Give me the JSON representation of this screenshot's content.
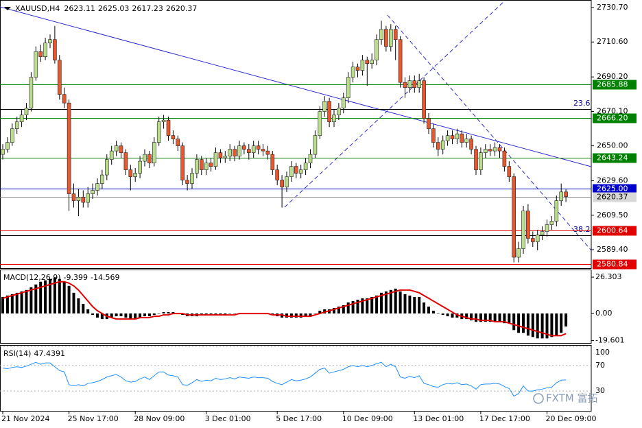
{
  "chart_data": {
    "type": "candlestick",
    "symbol": "XAUUSD,H4",
    "up_color": "#b9dd8a",
    "down_color": "#e8582e",
    "categories": [
      "21 Nov 2024",
      null,
      null,
      null,
      null,
      null,
      null,
      null,
      null,
      null,
      null,
      null,
      null,
      null,
      "25 Nov 17:00",
      null,
      null,
      null,
      null,
      null,
      null,
      null,
      null,
      null,
      null,
      null,
      null,
      null,
      "28 Nov 09:00",
      null,
      null,
      null,
      null,
      null,
      null,
      null,
      null,
      null,
      null,
      null,
      null,
      null,
      null,
      "3 Dec 01:00",
      null,
      null,
      null,
      null,
      null,
      null,
      null,
      null,
      null,
      null,
      null,
      null,
      null,
      null,
      "5 Dec 17:00",
      null,
      null,
      null,
      null,
      null,
      null,
      null,
      null,
      null,
      null,
      null,
      null,
      null,
      "10 Dec 09:00",
      null,
      null,
      null,
      null,
      null,
      null,
      null,
      null,
      null,
      null,
      null,
      null,
      null,
      null,
      "13 Dec 01:00",
      null,
      null,
      null,
      null,
      null,
      null,
      null,
      null,
      null,
      null,
      null,
      null,
      null,
      "17 Dec 17:00",
      null,
      null,
      null,
      null,
      null,
      null,
      null,
      null,
      null,
      null,
      null,
      null,
      null,
      "20 Dec 09:00",
      null,
      null,
      null,
      null
    ],
    "ohlc": [
      [
        2645,
        2651,
        2642,
        2648
      ],
      [
        2648,
        2655,
        2646,
        2652
      ],
      [
        2652,
        2663,
        2650,
        2660
      ],
      [
        2660,
        2667,
        2657,
        2664
      ],
      [
        2664,
        2671,
        2661,
        2668
      ],
      [
        2668,
        2675,
        2665,
        2672
      ],
      [
        2672,
        2693,
        2670,
        2690
      ],
      [
        2690,
        2708,
        2688,
        2705
      ],
      [
        2705,
        2709,
        2699,
        2702
      ],
      [
        2702,
        2713,
        2700,
        2710
      ],
      [
        2710,
        2715,
        2707,
        2712
      ],
      [
        2712,
        2720,
        2698,
        2700
      ],
      [
        2700,
        2703,
        2677,
        2680
      ],
      [
        2680,
        2684,
        2672,
        2675
      ],
      [
        2675,
        2677,
        2612,
        2622
      ],
      [
        2622,
        2628,
        2614,
        2618
      ],
      [
        2618,
        2625,
        2609,
        2620
      ],
      [
        2620,
        2624,
        2614,
        2617
      ],
      [
        2617,
        2626,
        2614,
        2622
      ],
      [
        2622,
        2628,
        2619,
        2624
      ],
      [
        2624,
        2631,
        2621,
        2628
      ],
      [
        2628,
        2636,
        2625,
        2633
      ],
      [
        2633,
        2645,
        2630,
        2642
      ],
      [
        2642,
        2650,
        2639,
        2647
      ],
      [
        2647,
        2653,
        2644,
        2650
      ],
      [
        2650,
        2652,
        2643,
        2646
      ],
      [
        2646,
        2648,
        2633,
        2636
      ],
      [
        2636,
        2639,
        2624,
        2632
      ],
      [
        2632,
        2637,
        2629,
        2634
      ],
      [
        2634,
        2644,
        2631,
        2641
      ],
      [
        2641,
        2648,
        2638,
        2645
      ],
      [
        2645,
        2647,
        2637,
        2640
      ],
      [
        2640,
        2655,
        2638,
        2652
      ],
      [
        2652,
        2667,
        2650,
        2664
      ],
      [
        2664,
        2668,
        2660,
        2665
      ],
      [
        2665,
        2667,
        2653,
        2656
      ],
      [
        2656,
        2659,
        2651,
        2654
      ],
      [
        2654,
        2656,
        2647,
        2650
      ],
      [
        2650,
        2652,
        2627,
        2630
      ],
      [
        2630,
        2633,
        2624,
        2628
      ],
      [
        2628,
        2637,
        2625,
        2634
      ],
      [
        2634,
        2645,
        2631,
        2642
      ],
      [
        2642,
        2644,
        2633,
        2636
      ],
      [
        2636,
        2643,
        2633,
        2640
      ],
      [
        2640,
        2643,
        2635,
        2638
      ],
      [
        2638,
        2649,
        2636,
        2646
      ],
      [
        2646,
        2648,
        2640,
        2643
      ],
      [
        2643,
        2647,
        2640,
        2644
      ],
      [
        2644,
        2651,
        2641,
        2648
      ],
      [
        2648,
        2650,
        2641,
        2644
      ],
      [
        2644,
        2653,
        2642,
        2650
      ],
      [
        2650,
        2652,
        2645,
        2648
      ],
      [
        2648,
        2651,
        2642,
        2646
      ],
      [
        2646,
        2653,
        2643,
        2650
      ],
      [
        2650,
        2653,
        2645,
        2648
      ],
      [
        2648,
        2651,
        2644,
        2647
      ],
      [
        2647,
        2650,
        2642,
        2645
      ],
      [
        2645,
        2647,
        2633,
        2636
      ],
      [
        2636,
        2639,
        2627,
        2630
      ],
      [
        2630,
        2633,
        2614,
        2626
      ],
      [
        2626,
        2635,
        2623,
        2632
      ],
      [
        2632,
        2641,
        2629,
        2638
      ],
      [
        2638,
        2640,
        2631,
        2634
      ],
      [
        2634,
        2639,
        2631,
        2636
      ],
      [
        2636,
        2643,
        2633,
        2640
      ],
      [
        2640,
        2648,
        2637,
        2645
      ],
      [
        2645,
        2659,
        2643,
        2656
      ],
      [
        2656,
        2673,
        2654,
        2670
      ],
      [
        2670,
        2679,
        2667,
        2676
      ],
      [
        2676,
        2678,
        2661,
        2664
      ],
      [
        2664,
        2671,
        2661,
        2668
      ],
      [
        2668,
        2675,
        2665,
        2672
      ],
      [
        2672,
        2681,
        2669,
        2678
      ],
      [
        2678,
        2693,
        2675,
        2690
      ],
      [
        2690,
        2699,
        2687,
        2696
      ],
      [
        2696,
        2698,
        2690,
        2694
      ],
      [
        2694,
        2703,
        2691,
        2700
      ],
      [
        2700,
        2702,
        2685,
        2698
      ],
      [
        2698,
        2704,
        2695,
        2700
      ],
      [
        2700,
        2715,
        2697,
        2712
      ],
      [
        2712,
        2723,
        2709,
        2718
      ],
      [
        2718,
        2720,
        2705,
        2708
      ],
      [
        2708,
        2721,
        2705,
        2718
      ],
      [
        2718,
        2720,
        2700,
        2712
      ],
      [
        2712,
        2714,
        2684,
        2687
      ],
      [
        2687,
        2690,
        2678,
        2684
      ],
      [
        2684,
        2691,
        2681,
        2688
      ],
      [
        2688,
        2691,
        2681,
        2684
      ],
      [
        2684,
        2692,
        2681,
        2688
      ],
      [
        2688,
        2690,
        2663,
        2666
      ],
      [
        2666,
        2669,
        2657,
        2660
      ],
      [
        2660,
        2663,
        2649,
        2652
      ],
      [
        2652,
        2655,
        2644,
        2648
      ],
      [
        2648,
        2656,
        2645,
        2653
      ],
      [
        2653,
        2659,
        2650,
        2656
      ],
      [
        2656,
        2659,
        2651,
        2654
      ],
      [
        2654,
        2660,
        2651,
        2657
      ],
      [
        2657,
        2659,
        2649,
        2652
      ],
      [
        2652,
        2657,
        2649,
        2654
      ],
      [
        2654,
        2656,
        2645,
        2648
      ],
      [
        2648,
        2650,
        2633,
        2636
      ],
      [
        2636,
        2649,
        2633,
        2646
      ],
      [
        2646,
        2651,
        2643,
        2648
      ],
      [
        2648,
        2651,
        2644,
        2647
      ],
      [
        2647,
        2652,
        2644,
        2649
      ],
      [
        2649,
        2651,
        2643,
        2647
      ],
      [
        2647,
        2649,
        2635,
        2638
      ],
      [
        2638,
        2641,
        2629,
        2632
      ],
      [
        2632,
        2634,
        2582,
        2585
      ],
      [
        2585,
        2594,
        2582,
        2590
      ],
      [
        2590,
        2615,
        2587,
        2612
      ],
      [
        2612,
        2616,
        2593,
        2596
      ],
      [
        2596,
        2600,
        2591,
        2594
      ],
      [
        2594,
        2601,
        2589,
        2598
      ],
      [
        2598,
        2603,
        2595,
        2600
      ],
      [
        2600,
        2607,
        2597,
        2604
      ],
      [
        2604,
        2609,
        2601,
        2606
      ],
      [
        2606,
        2621,
        2603,
        2618
      ],
      [
        2618,
        2628,
        2615,
        2623.11
      ],
      [
        2623.11,
        2625.03,
        2617.23,
        2620.37
      ]
    ],
    "ylim": [
      2578.2,
      2735.1
    ],
    "yticks": [
      {
        "value": 2730.7,
        "label": "2730.70"
      },
      {
        "value": 2710.6,
        "label": "2710.60"
      },
      {
        "value": 2690.2,
        "label": "2690.20"
      },
      {
        "value": 2670.1,
        "label": "2670.10"
      },
      {
        "value": 2650,
        "label": "2650.00"
      },
      {
        "value": 2629.6,
        "label": "2629.60"
      },
      {
        "value": 2609.5,
        "label": "2609.50"
      },
      {
        "value": 2589.4,
        "label": "2589.40"
      }
    ],
    "levels": [
      {
        "value": 2685.88,
        "label": "2685.88",
        "color": "#008000"
      },
      {
        "value": 2666.2,
        "label": "2666.20",
        "color": "#008000"
      },
      {
        "value": 2643.24,
        "label": "2643.24",
        "color": "#008000"
      },
      {
        "value": 2625,
        "label": "2625.00",
        "color": "#0000cd"
      },
      {
        "value": 2600.64,
        "label": "2600.64",
        "color": "#e00000"
      },
      {
        "value": 2580.84,
        "label": "2580.84",
        "color": "#e00000"
      }
    ],
    "fib_labels": [
      "23.6",
      "38.2"
    ],
    "macd": {
      "title": "MACD(12,26,9)",
      "signal_color": "#e00000",
      "ylim": [
        -21.3,
        31.3
      ],
      "yticks": [
        26.303,
        {
          "value": 0,
          "label": "0.00"
        },
        -19.601
      ],
      "histogram": [
        12,
        13,
        14,
        15,
        16,
        17,
        19,
        21,
        23,
        24,
        25,
        26,
        25,
        23,
        20,
        15,
        11,
        7,
        3,
        -1,
        -3,
        -4,
        -4,
        -3,
        -2,
        -2,
        -3,
        -4,
        -4,
        -3,
        -2,
        -2,
        -1,
        0,
        1,
        1,
        1,
        0,
        -1,
        -2,
        -2,
        -2,
        -1,
        -1,
        -1,
        -1,
        -1,
        -1,
        0,
        0,
        0,
        0,
        0,
        0,
        0,
        0,
        0,
        -1,
        -2,
        -3,
        -3,
        -3,
        -3,
        -3,
        -2,
        -2,
        0,
        2,
        3,
        3,
        4,
        5,
        6,
        8,
        9,
        10,
        11,
        11,
        12,
        13,
        15,
        16,
        17,
        18,
        16,
        14,
        13,
        12,
        12,
        8,
        5,
        2,
        0,
        -1,
        -2,
        -3,
        -3,
        -4,
        -4,
        -5,
        -6,
        -6,
        -6,
        -6,
        -6,
        -6,
        -7,
        -7,
        -12,
        -14,
        -14,
        -16,
        -17,
        -18,
        -18,
        -18,
        -17,
        -16,
        -14,
        -9.399
      ],
      "signal": [
        11,
        12,
        13,
        14,
        15,
        16,
        17,
        18,
        19,
        20,
        21,
        22,
        23,
        23,
        22,
        20,
        17,
        13,
        9,
        5,
        2,
        0,
        -2,
        -3,
        -4,
        -4,
        -4,
        -4,
        -4,
        -3,
        -3,
        -3,
        -2,
        -2,
        -1,
        -1,
        0,
        0,
        0,
        -1,
        -1,
        -1,
        -1,
        -1,
        -1,
        -1,
        -1,
        -1,
        -1,
        -1,
        0,
        0,
        0,
        0,
        0,
        0,
        0,
        -1,
        -1,
        -1,
        -2,
        -2,
        -2,
        -2,
        -2,
        -2,
        -1,
        0,
        1,
        2,
        3,
        4,
        5,
        6,
        7,
        8,
        9,
        10,
        11,
        12,
        13,
        14,
        15,
        16,
        17,
        17,
        17,
        16,
        15,
        13,
        11,
        9,
        7,
        5,
        3,
        1,
        -1,
        -2,
        -3,
        -4,
        -4,
        -5,
        -5,
        -5,
        -6,
        -6,
        -6,
        -7,
        -8,
        -9,
        -10,
        -11,
        -12,
        -13,
        -14,
        -15,
        -16,
        -16,
        -16,
        -14.569
      ]
    },
    "rsi": {
      "title": "RSI(14)",
      "color": "#1e90ff",
      "ylim": [
        0,
        100
      ],
      "yticks": [
        100,
        70,
        30
      ],
      "values": [
        66,
        65,
        67,
        68,
        67,
        69,
        72,
        75,
        72,
        74,
        74,
        68,
        62,
        60,
        40,
        38,
        40,
        38,
        42,
        43,
        45,
        48,
        52,
        54,
        56,
        52,
        46,
        44,
        45,
        49,
        52,
        48,
        54,
        60,
        60,
        55,
        54,
        52,
        40,
        39,
        43,
        48,
        45,
        47,
        46,
        50,
        48,
        49,
        51,
        49,
        52,
        51,
        50,
        52,
        51,
        51,
        50,
        45,
        42,
        40,
        44,
        48,
        46,
        47,
        49,
        52,
        58,
        64,
        66,
        58,
        60,
        62,
        64,
        68,
        70,
        68,
        70,
        68,
        70,
        73,
        75,
        68,
        72,
        68,
        52,
        50,
        53,
        51,
        54,
        42,
        40,
        37,
        36,
        40,
        42,
        41,
        43,
        40,
        41,
        38,
        33,
        40,
        41,
        41,
        42,
        41,
        37,
        34,
        22,
        26,
        38,
        30,
        30,
        32,
        33,
        35,
        36,
        43,
        47,
        47.4391
      ]
    },
    "watermark": "FXTM 富拓"
  }
}
